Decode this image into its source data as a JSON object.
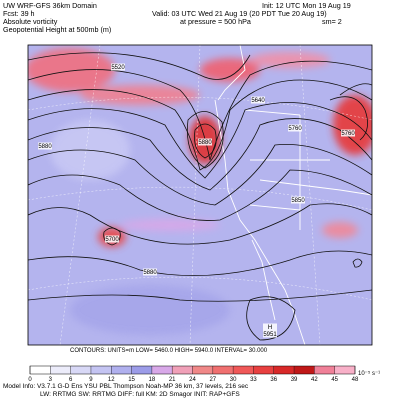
{
  "header": {
    "left": [
      "UW WRF-GFS 36km Domain",
      "Fcst:   39 h",
      "Absolute vorticity",
      "Geopotential Height at 500mb (m)"
    ],
    "init": "Init: 12 UTC Mon 19 Aug 19",
    "valid": "Valid: 03 UTC Wed 21 Aug 19 (20 PDT Tue 20 Aug 19)",
    "pressure": "at pressure =  500 hPa",
    "smoothing": "sm= 2"
  },
  "map": {
    "contour_labels": [
      "5520",
      "5640",
      "5760",
      "5760",
      "5880",
      "5880",
      "5850",
      "5700",
      "5880",
      "H",
      "5951"
    ]
  },
  "footer": {
    "contours": "CONTOURS:  UNITS=m   LOW=  5460.0    HIGH=  5940.0    INTERVAL=  30.000",
    "colorbar": {
      "ticks": [
        0,
        3,
        6,
        9,
        12,
        15,
        18,
        21,
        24,
        27,
        30,
        33,
        36,
        39,
        42,
        45,
        48
      ],
      "unit": "10⁻⁵ s⁻¹",
      "colors": [
        "#ffffff",
        "#ececfa",
        "#d8d8f6",
        "#c4c4f2",
        "#b0b0ee",
        "#9c9ce8",
        "#d8a8e8",
        "#f0a0b8",
        "#f08888",
        "#f07070",
        "#f05858",
        "#e84040",
        "#d82828",
        "#c01818",
        "#f08098",
        "#f8b0c8"
      ]
    },
    "model_info": [
      "Model Info: V3.7.1   G-D Ens YSU PBL   Thompson   Noah-MP   36 km,   37 levels,  216 sec",
      "LW: RRTMG   SW: RRTMG   DIFF: full   KM: 2D Smagor   INIT: RAP+GFS"
    ]
  }
}
